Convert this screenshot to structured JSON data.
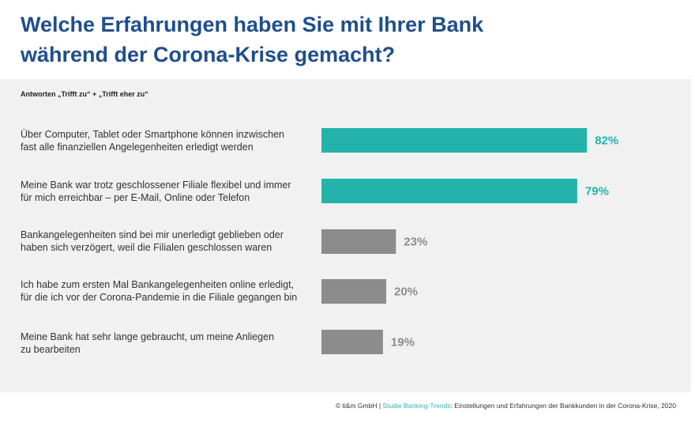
{
  "title_lines": [
    "Welche Erfahrungen haben Sie mit Ihrer Bank",
    "während der Corona-Krise gemacht?"
  ],
  "colors": {
    "title": "#1f4e8c",
    "highlight": "#23b3ab",
    "neutral": "#8c8c8c",
    "panel": "#f1f1f1"
  },
  "chart_data": {
    "type": "bar",
    "orientation": "horizontal",
    "subtitle": "Antworten „Trifft zu“ + „Trifft eher zu“",
    "categories": [
      [
        "Über Computer, Tablet oder Smartphone können inzwischen",
        "fast alle finanziellen Angelegenheiten erledigt werden"
      ],
      [
        "Meine Bank war trotz geschlossener Filiale flexibel und immer",
        "für mich erreichbar – per E-Mail, Online oder Telefon"
      ],
      [
        "Bankangelegenheiten sind bei mir unerledigt geblieben oder",
        "haben sich verzögert, weil die Filialen geschlossen waren"
      ],
      [
        "Ich habe zum ersten Mal Bankangelegenheiten online erledigt,",
        "für die ich vor der Corona-Pandemie in die Filiale gegangen bin"
      ],
      [
        "Meine Bank hat sehr lange gebraucht, um meine Anliegen",
        "zu bearbeiten"
      ]
    ],
    "values": [
      82,
      79,
      23,
      20,
      19
    ],
    "data_labels": [
      "82%",
      "79%",
      "23%",
      "20%",
      "19%"
    ],
    "highlighted": [
      true,
      true,
      false,
      false,
      false
    ],
    "xlim": [
      0,
      100
    ],
    "grid": false,
    "legend": "none"
  },
  "footer": {
    "copyright": "© ti&m GmbH",
    "separator": " | ",
    "source_name": "Studie Banking-Trends",
    "source_rest": ": Einstellungen und Erfahrungen der Bankkunden in der Corona-Krise, 2020"
  }
}
